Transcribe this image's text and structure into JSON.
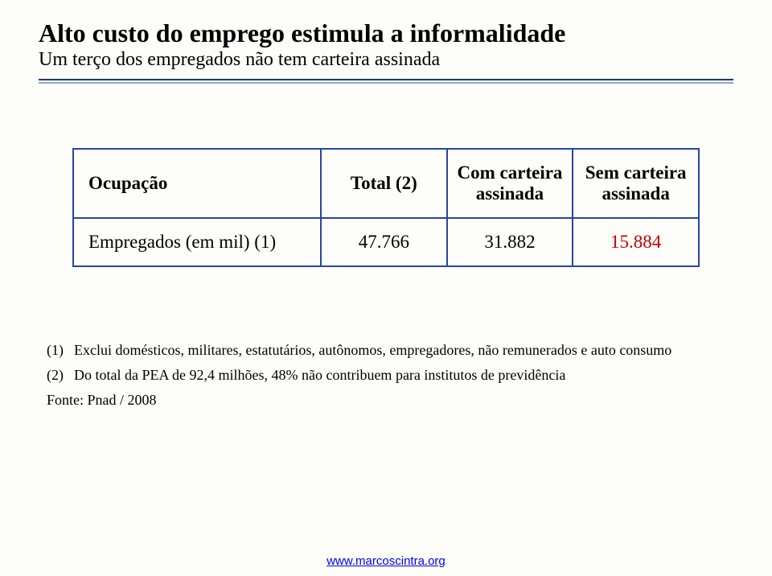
{
  "title": "Alto custo do emprego estimula a informalidade",
  "subtitle": "Um terço dos empregados não tem carteira assinada",
  "table": {
    "columns": [
      "Ocupação",
      "Total (2)",
      "Com carteira assinada",
      "Sem carteira assinada"
    ],
    "rows": [
      {
        "label": "Empregados (em mil) (1)",
        "total": "47.766",
        "com": "31.882",
        "sem": "15.884"
      }
    ],
    "border_color": "#2a45a8",
    "highlight_color": "#c00000",
    "font_size": 23
  },
  "notes": {
    "items": [
      {
        "marker": "(1)",
        "text": "Exclui domésticos, militares, estatutários, autônomos, empregadores, não remunerados e auto consumo"
      },
      {
        "marker": "(2)",
        "text": "Do total da PEA de 92,4 milhões, 48% não contribuem para institutos de previdência"
      }
    ],
    "source": "Fonte: Pnad / 2008"
  },
  "footer": {
    "url_text": "www.marcoscintra.org"
  },
  "rules": {
    "dark": "#203864",
    "light": "#8ba8d6"
  },
  "background_color": "#fdfdf9"
}
